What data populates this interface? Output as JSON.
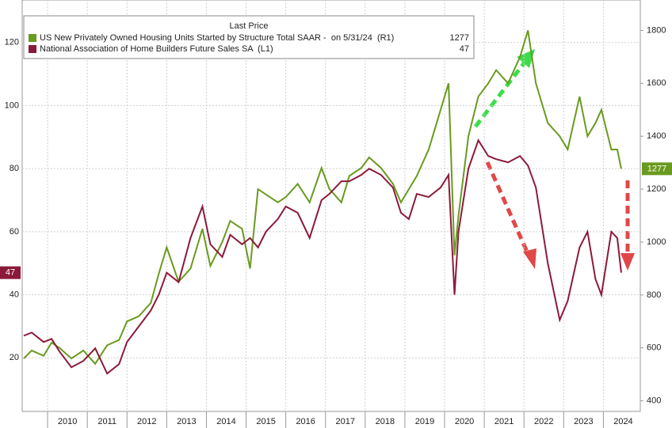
{
  "chart_data": {
    "type": "line",
    "legend_title": "Last Price",
    "x": [
      2009.4,
      2009.6,
      2009.9,
      2010.1,
      2010.3,
      2010.6,
      2010.9,
      2011.2,
      2011.5,
      2011.8,
      2012.0,
      2012.3,
      2012.6,
      2012.8,
      2013.0,
      2013.3,
      2013.6,
      2013.9,
      2014.1,
      2014.4,
      2014.6,
      2014.9,
      2015.1,
      2015.3,
      2015.5,
      2015.8,
      2016.0,
      2016.3,
      2016.6,
      2016.9,
      2017.1,
      2017.4,
      2017.6,
      2017.9,
      2018.1,
      2018.4,
      2018.7,
      2018.9,
      2019.1,
      2019.3,
      2019.6,
      2019.9,
      2020.1,
      2020.25,
      2020.35,
      2020.6,
      2020.85,
      2021.1,
      2021.3,
      2021.6,
      2021.9,
      2022.1,
      2022.3,
      2022.6,
      2022.9,
      2023.1,
      2023.4,
      2023.6,
      2023.8,
      2023.95,
      2024.2,
      2024.35,
      2024.45
    ],
    "series": [
      {
        "name": "US New Privately Owned Housing Units Started by Structure Total SAAR -  on 5/31/24  (R1)",
        "color": "#6a9a1f",
        "axis": "y2",
        "values": [
          560,
          590,
          570,
          620,
          600,
          560,
          590,
          540,
          610,
          630,
          700,
          720,
          770,
          880,
          980,
          850,
          900,
          1050,
          910,
          1000,
          1080,
          1050,
          900,
          1200,
          1180,
          1150,
          1170,
          1220,
          1150,
          1280,
          1200,
          1150,
          1250,
          1280,
          1320,
          1280,
          1220,
          1150,
          1200,
          1250,
          1350,
          1500,
          1600,
          950,
          1100,
          1400,
          1550,
          1600,
          1650,
          1600,
          1700,
          1800,
          1600,
          1450,
          1400,
          1350,
          1550,
          1400,
          1450,
          1500,
          1350,
          1350,
          1277
        ]
      },
      {
        "name": "National Association of Home Builders Future Sales SA  (L1)",
        "color": "#8b1a3a",
        "values": [
          27,
          28,
          25,
          26,
          22,
          17,
          19,
          23,
          15,
          18,
          25,
          30,
          35,
          40,
          47,
          44,
          58,
          68,
          56,
          52,
          59,
          56,
          58,
          55,
          60,
          64,
          68,
          66,
          58,
          70,
          72,
          76,
          76,
          78,
          80,
          78,
          74,
          66,
          64,
          72,
          71,
          74,
          78,
          40,
          60,
          80,
          89,
          84,
          83,
          82,
          84,
          81,
          74,
          50,
          32,
          38,
          55,
          60,
          45,
          40,
          60,
          58,
          47
        ]
      }
    ],
    "xlim": [
      2009.36,
      2024.93
    ],
    "xticks": [
      2010,
      2011,
      2012,
      2013,
      2014,
      2015,
      2016,
      2017,
      2018,
      2019,
      2020,
      2021,
      2022,
      2023,
      2024
    ],
    "ylim": [
      3,
      133.5
    ],
    "yticks": [
      20,
      40,
      60,
      80,
      100,
      120
    ],
    "y2lim": [
      360,
      1915
    ],
    "y2ticks": [
      400,
      600,
      800,
      1000,
      1200,
      1400,
      1600,
      1800
    ],
    "grid": true
  }
}
